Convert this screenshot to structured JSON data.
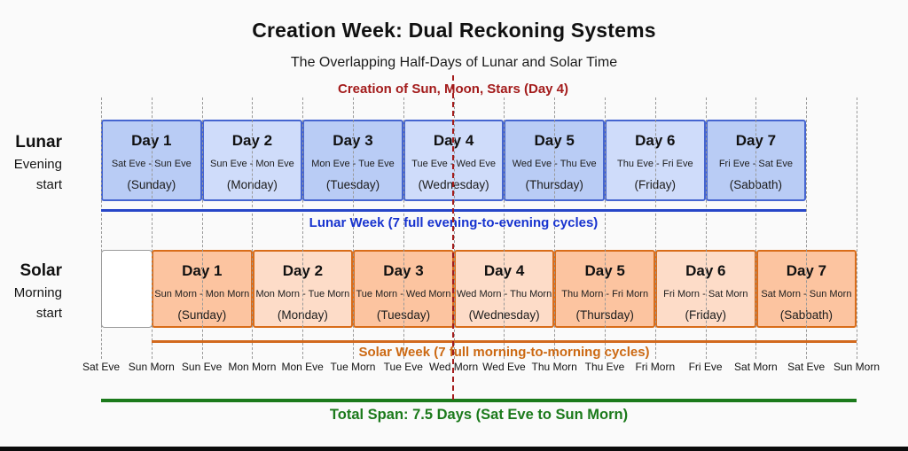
{
  "header": {
    "title": "Creation Week: Dual Reckoning Systems",
    "subtitle": "The Overlapping Half-Days of Lunar and Solar Time"
  },
  "annotations": {
    "creation_event": "Creation of Sun, Moon, Stars (Day 4)",
    "lunar_week": "Lunar Week (7 full evening-to-evening cycles)",
    "solar_week": "Solar Week (7 full morning-to-morning cycles)",
    "total_span": "Total Span: 7.5 Days (Sat Eve to Sun Morn)"
  },
  "rows": {
    "lunar": {
      "label": "Lunar",
      "sublabel_line1": "Evening",
      "sublabel_line2": "start",
      "days": [
        {
          "title": "Day 1",
          "range": "Sat Eve - Sun Eve",
          "day_name": "(Sunday)"
        },
        {
          "title": "Day 2",
          "range": "Sun Eve - Mon Eve",
          "day_name": "(Monday)"
        },
        {
          "title": "Day 3",
          "range": "Mon Eve - Tue Eve",
          "day_name": "(Tuesday)"
        },
        {
          "title": "Day 4",
          "range": "Tue Eve - Wed Eve",
          "day_name": "(Wednesday)"
        },
        {
          "title": "Day 5",
          "range": "Wed Eve - Thu Eve",
          "day_name": "(Thursday)"
        },
        {
          "title": "Day 6",
          "range": "Thu Eve - Fri Eve",
          "day_name": "(Friday)"
        },
        {
          "title": "Day 7",
          "range": "Fri Eve - Sat Eve",
          "day_name": "(Sabbath)"
        }
      ]
    },
    "solar": {
      "label": "Solar",
      "sublabel_line1": "Morning",
      "sublabel_line2": "start",
      "days": [
        {
          "title": "Day 1",
          "range": "Sun Morn - Mon Morn",
          "day_name": "(Sunday)"
        },
        {
          "title": "Day 2",
          "range": "Mon Morn - Tue Morn",
          "day_name": "(Monday)"
        },
        {
          "title": "Day 3",
          "range": "Tue Morn - Wed Morn",
          "day_name": "(Tuesday)"
        },
        {
          "title": "Day 4",
          "range": "Wed Morn - Thu Morn",
          "day_name": "(Wednesday)"
        },
        {
          "title": "Day 5",
          "range": "Thu Morn - Fri Morn",
          "day_name": "(Thursday)"
        },
        {
          "title": "Day 6",
          "range": "Fri Morn - Sat Morn",
          "day_name": "(Friday)"
        },
        {
          "title": "Day 7",
          "range": "Sat Morn - Sun Morn",
          "day_name": "(Sabbath)"
        }
      ]
    }
  },
  "x_axis": {
    "ticks": [
      "Sat Eve",
      "Sun Morn",
      "Sun Eve",
      "Mon Morn",
      "Mon Eve",
      "Tue Morn",
      "Tue Eve",
      "Wed Morn",
      "Wed Eve",
      "Thu Morn",
      "Thu Eve",
      "Fri Morn",
      "Fri Eve",
      "Sat Morn",
      "Sat Eve",
      "Sun Morn"
    ]
  },
  "colors": {
    "background": "#fafafa",
    "lunar_fill_a": "#b9ccf5",
    "lunar_fill_b": "#cfdcfa",
    "lunar_border": "#4565d0",
    "lunar_line": "#2746c8",
    "lunar_text": "#1733cf",
    "solar_fill_a": "#fcc4a0",
    "solar_fill_b": "#fddcc8",
    "solar_border": "#d96d1a",
    "solar_line": "#d2691e",
    "solar_text": "#cc6913",
    "creation_red": "#a31b1b",
    "total_green": "#1b7a1b",
    "gridline": "#999999"
  }
}
